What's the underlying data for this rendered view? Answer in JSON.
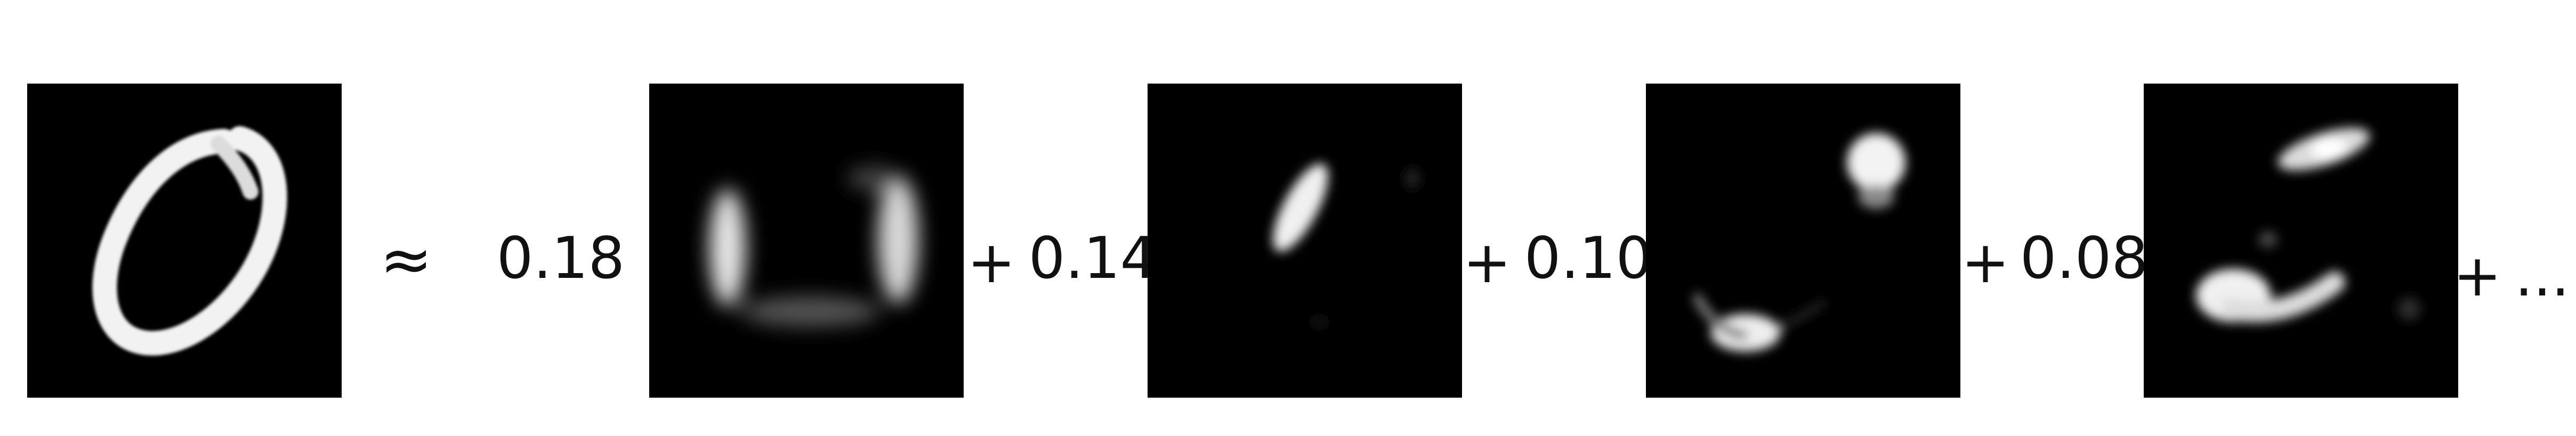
{
  "equation": {
    "approx_symbol": "≈",
    "coefficients": [
      "0.18",
      "0.14",
      "0.10",
      "0.08"
    ],
    "plus_symbol": "+",
    "ellipsis": "...",
    "panel_background": "#000000"
  }
}
